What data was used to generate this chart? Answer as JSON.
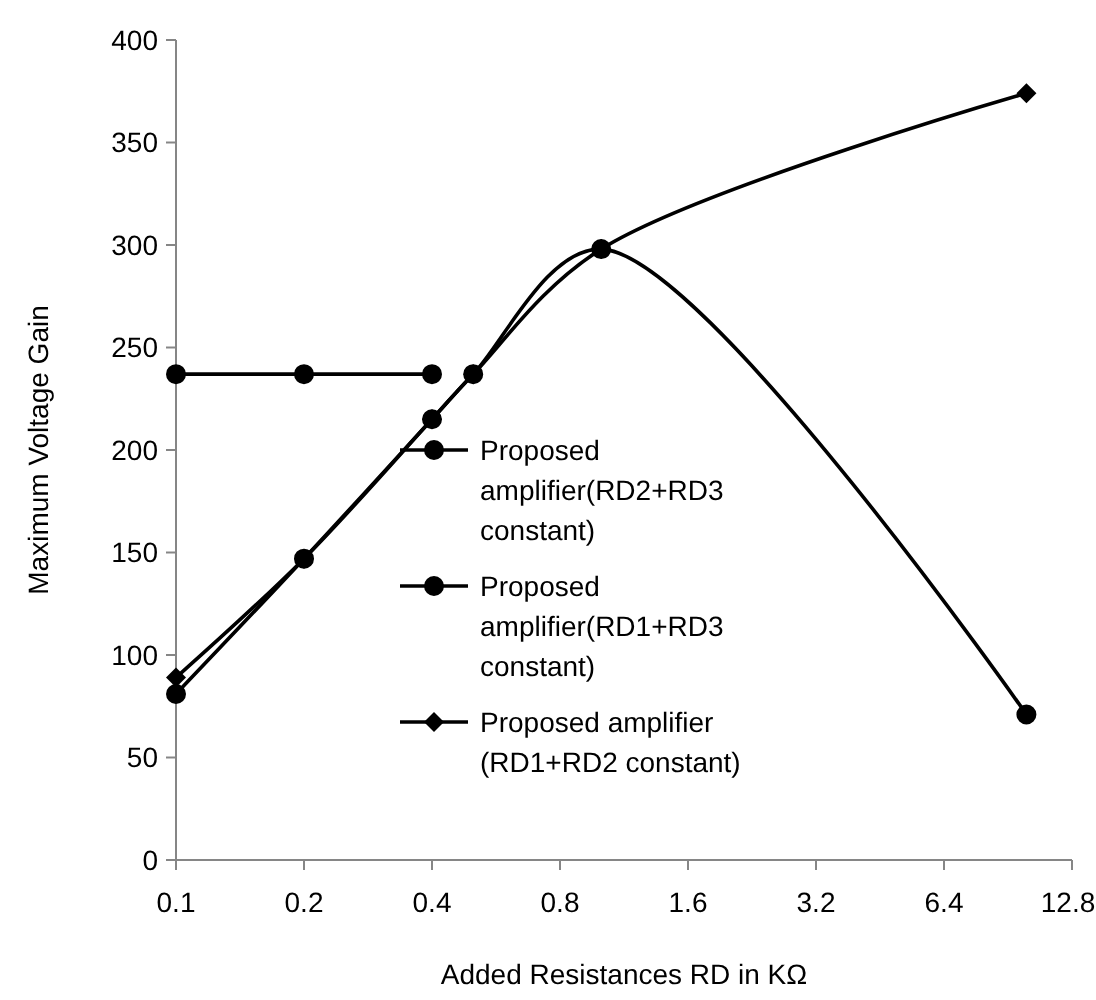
{
  "chart_data": {
    "type": "line",
    "xlabel": "Added Resistances RD in KΩ",
    "ylabel": "Maximum Voltage Gain",
    "log": "x",
    "xlim": [
      0.1,
      12.8
    ],
    "xticks": [
      0.1,
      0.2,
      0.4,
      0.8,
      1.6,
      3.2,
      6.4,
      12.8
    ],
    "ylim": [
      0,
      400
    ],
    "yticks": [
      0,
      50,
      100,
      150,
      200,
      250,
      300,
      350,
      400
    ],
    "grid": false,
    "legend": "center",
    "series": [
      {
        "name": "Proposed amplifier(RD2+RD3 constant)",
        "color": "#000000",
        "marker": "circle",
        "x": [
          0.1,
          0.2,
          0.4
        ],
        "values": [
          237,
          237,
          237
        ]
      },
      {
        "name": "Proposed amplifier(RD1+RD3 constant)",
        "color": "#000000",
        "marker": "circle",
        "x": [
          0.1,
          0.2,
          0.4,
          0.5,
          1,
          10
        ],
        "values": [
          81,
          147,
          215,
          237,
          298,
          71
        ]
      },
      {
        "name": "Proposed amplifier (RD1+RD2 constant)",
        "color": "#000000",
        "marker": "diamond",
        "x": [
          0.1,
          0.2,
          0.4,
          0.5,
          1,
          10
        ],
        "values": [
          89,
          147,
          215,
          237,
          298,
          374
        ]
      }
    ]
  }
}
